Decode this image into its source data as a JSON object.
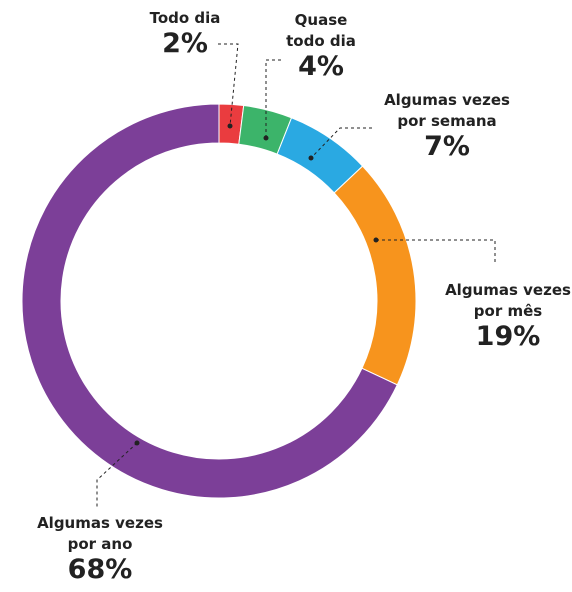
{
  "chart_data": {
    "type": "pie",
    "categories": [
      "Todo dia",
      "Quase todo dia",
      "Algumas vezes por semana",
      "Algumas vezes por mês",
      "Algumas vezes por ano"
    ],
    "values": [
      2,
      4,
      7,
      19,
      68
    ],
    "value_labels": [
      "2%",
      "4%",
      "7%",
      "19%",
      "68%"
    ],
    "colors": [
      "#ea3c3f",
      "#3cb46a",
      "#2aa9e2",
      "#f7941d",
      "#7c3f98"
    ],
    "donut": true
  }
}
